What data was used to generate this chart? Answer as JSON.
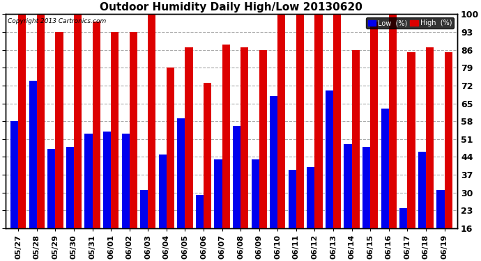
{
  "title": "Outdoor Humidity Daily High/Low 20130620",
  "copyright": "Copyright 2013 Cartronics.com",
  "yticks": [
    16,
    23,
    30,
    37,
    44,
    51,
    58,
    65,
    72,
    79,
    86,
    93,
    100
  ],
  "ylim": [
    16,
    100
  ],
  "bar_width": 0.42,
  "dates": [
    "05/27",
    "05/28",
    "05/29",
    "05/30",
    "05/31",
    "06/01",
    "06/02",
    "06/03",
    "06/04",
    "06/05",
    "06/06",
    "06/07",
    "06/08",
    "06/09",
    "06/10",
    "06/11",
    "06/12",
    "06/13",
    "06/14",
    "06/15",
    "06/16",
    "06/17",
    "06/18",
    "06/19"
  ],
  "low": [
    58,
    74,
    47,
    48,
    53,
    54,
    53,
    31,
    45,
    59,
    29,
    43,
    56,
    43,
    68,
    39,
    40,
    70,
    49,
    48,
    63,
    24,
    46,
    31
  ],
  "high": [
    100,
    100,
    93,
    100,
    97,
    93,
    93,
    100,
    79,
    87,
    73,
    88,
    87,
    86,
    100,
    100,
    100,
    100,
    86,
    97,
    100,
    85,
    87,
    85
  ],
  "low_color": "#0000ee",
  "high_color": "#dd0000",
  "background_color": "#ffffff",
  "grid_color": "#aaaaaa",
  "title_fontsize": 11,
  "tick_fontsize": 8,
  "legend_low_label": "Low  (%)",
  "legend_high_label": "High  (%)"
}
